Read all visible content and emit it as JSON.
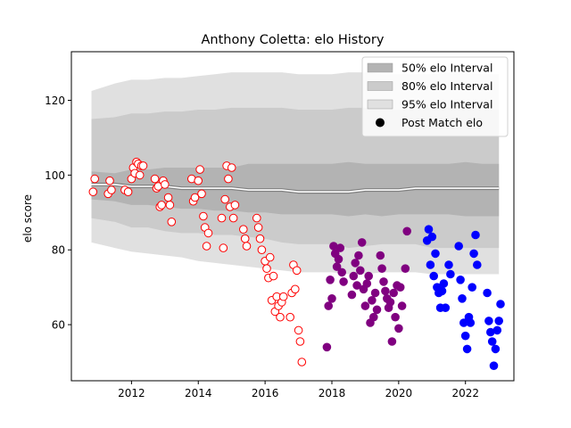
{
  "chart_data": {
    "type": "scatter",
    "title": "Anthony Coletta: elo History",
    "xlabel": "",
    "ylabel": "elo score",
    "xlim": [
      2010.2,
      2023.45
    ],
    "ylim": [
      45,
      133
    ],
    "xticks": [
      2012,
      2014,
      2016,
      2018,
      2020,
      2022
    ],
    "yticks": [
      60,
      80,
      100,
      120
    ],
    "grid": false,
    "legend": {
      "placement": "top-right",
      "entries": [
        {
          "label": "50% elo Interval",
          "swatch": "band",
          "color": "#b3b3b3"
        },
        {
          "label": "80% elo Interval",
          "swatch": "band",
          "color": "#cbcbcb"
        },
        {
          "label": "95% elo Interval",
          "swatch": "band",
          "color": "#e0e0e0"
        },
        {
          "label": "Post Match elo",
          "swatch": "dot",
          "color": "#000000"
        }
      ]
    },
    "bands": {
      "x": [
        2010.8,
        2011.5,
        2012.0,
        2012.5,
        2013.0,
        2013.5,
        2014.0,
        2014.5,
        2015.0,
        2015.5,
        2016.0,
        2016.5,
        2017.0,
        2017.5,
        2018.0,
        2018.5,
        2019.0,
        2019.5,
        2020.0,
        2020.5,
        2021.0,
        2021.5,
        2022.0,
        2022.5,
        2023.0
      ],
      "mean": [
        97.5,
        97.5,
        97.0,
        97.0,
        97.0,
        96.5,
        96.5,
        96.5,
        96.5,
        96.0,
        96.0,
        96.0,
        95.5,
        95.5,
        95.5,
        95.5,
        96.0,
        96.0,
        96.0,
        96.5,
        96.5,
        96.5,
        96.5,
        96.5,
        96.5
      ],
      "p50": [
        [
          93.5,
          101.0
        ],
        [
          93.0,
          100.5
        ],
        [
          92.0,
          101.5
        ],
        [
          92.0,
          101.5
        ],
        [
          91.5,
          102.0
        ],
        [
          91.0,
          102.0
        ],
        [
          91.0,
          102.0
        ],
        [
          90.5,
          102.0
        ],
        [
          90.5,
          102.0
        ],
        [
          90.0,
          103.0
        ],
        [
          90.0,
          103.0
        ],
        [
          89.5,
          103.0
        ],
        [
          89.5,
          103.0
        ],
        [
          89.5,
          103.0
        ],
        [
          89.5,
          103.0
        ],
        [
          89.0,
          103.5
        ],
        [
          89.5,
          103.0
        ],
        [
          89.0,
          103.0
        ],
        [
          89.5,
          103.0
        ],
        [
          89.5,
          103.0
        ],
        [
          89.5,
          103.0
        ],
        [
          89.5,
          103.0
        ],
        [
          89.0,
          103.5
        ],
        [
          89.0,
          103.0
        ],
        [
          89.0,
          103.0
        ]
      ],
      "p80": [
        [
          88.5,
          115.0
        ],
        [
          87.5,
          115.5
        ],
        [
          86.0,
          116.5
        ],
        [
          86.0,
          116.5
        ],
        [
          85.0,
          117.0
        ],
        [
          84.5,
          117.0
        ],
        [
          84.5,
          117.5
        ],
        [
          84.0,
          117.5
        ],
        [
          84.0,
          118.0
        ],
        [
          83.5,
          118.0
        ],
        [
          83.0,
          118.0
        ],
        [
          82.0,
          118.0
        ],
        [
          81.5,
          117.5
        ],
        [
          81.5,
          117.5
        ],
        [
          81.5,
          117.5
        ],
        [
          80.5,
          118.0
        ],
        [
          81.0,
          118.0
        ],
        [
          81.5,
          117.5
        ],
        [
          81.5,
          117.5
        ],
        [
          81.5,
          117.5
        ],
        [
          80.5,
          118.0
        ],
        [
          80.5,
          118.0
        ],
        [
          80.5,
          118.0
        ],
        [
          80.5,
          117.5
        ],
        [
          80.5,
          117.5
        ]
      ],
      "p95": [
        [
          82.0,
          122.5
        ],
        [
          80.5,
          124.5
        ],
        [
          79.5,
          125.5
        ],
        [
          79.0,
          125.5
        ],
        [
          78.5,
          126.0
        ],
        [
          78.0,
          126.0
        ],
        [
          77.0,
          126.5
        ],
        [
          76.5,
          127.0
        ],
        [
          76.0,
          127.5
        ],
        [
          75.5,
          127.5
        ],
        [
          75.0,
          127.5
        ],
        [
          74.5,
          127.5
        ],
        [
          74.0,
          127.0
        ],
        [
          74.0,
          127.0
        ],
        [
          74.0,
          127.0
        ],
        [
          73.5,
          127.5
        ],
        [
          73.5,
          127.5
        ],
        [
          74.0,
          127.0
        ],
        [
          74.0,
          127.0
        ],
        [
          74.0,
          127.0
        ],
        [
          73.5,
          127.0
        ],
        [
          73.5,
          127.5
        ],
        [
          73.5,
          127.5
        ],
        [
          73.5,
          127.0
        ],
        [
          73.5,
          127.0
        ]
      ]
    },
    "series": [
      {
        "color": "#ff0000",
        "fill": "#ffffff",
        "x": [
          2010.85,
          2010.9,
          2011.3,
          2011.35,
          2011.4,
          2011.8,
          2011.9,
          2012.0,
          2012.05,
          2012.1,
          2012.15,
          2012.2,
          2012.25,
          2012.3,
          2012.35,
          2012.7,
          2012.75,
          2012.8,
          2012.85,
          2012.9,
          2012.95,
          2013.0,
          2013.1,
          2013.15,
          2013.2,
          2013.8,
          2013.85,
          2013.9,
          2014.0,
          2014.05,
          2014.1,
          2014.15,
          2014.2,
          2014.25,
          2014.3,
          2014.7,
          2014.75,
          2014.8,
          2014.85,
          2014.9,
          2014.95,
          2015.0,
          2015.05,
          2015.1,
          2015.35,
          2015.4,
          2015.45,
          2015.75,
          2015.8,
          2015.85,
          2015.9,
          2016.0,
          2016.05,
          2016.1,
          2016.15,
          2016.2,
          2016.25,
          2016.3,
          2016.35,
          2016.4,
          2016.45,
          2016.5,
          2016.55,
          2016.75,
          2016.8,
          2016.85,
          2016.9,
          2016.95,
          2017.0,
          2017.05,
          2017.1
        ],
        "y": [
          95.5,
          99.0,
          95.0,
          98.5,
          96.0,
          96.0,
          95.5,
          99.0,
          102.0,
          100.5,
          103.5,
          103.0,
          100.0,
          102.5,
          102.5,
          99.0,
          96.5,
          97.0,
          91.5,
          92.0,
          98.5,
          97.5,
          94.0,
          92.0,
          87.5,
          99.0,
          93.0,
          94.0,
          98.5,
          101.5,
          95.0,
          89.0,
          86.0,
          81.0,
          84.5,
          88.5,
          80.5,
          93.5,
          102.5,
          99.0,
          91.5,
          102.0,
          88.5,
          92.0,
          85.5,
          83.0,
          81.0,
          88.5,
          86.0,
          83.0,
          80.0,
          77.0,
          75.0,
          72.5,
          78.0,
          66.5,
          73.0,
          63.5,
          67.5,
          65.0,
          62.0,
          66.0,
          67.5,
          62.0,
          68.5,
          76.0,
          69.5,
          74.5,
          58.5,
          55.5,
          50.0
        ]
      },
      {
        "color": "#800080",
        "fill": "#800080",
        "x": [
          2017.85,
          2017.9,
          2017.95,
          2018.0,
          2018.05,
          2018.1,
          2018.15,
          2018.2,
          2018.25,
          2018.3,
          2018.35,
          2018.6,
          2018.65,
          2018.7,
          2018.75,
          2018.8,
          2018.85,
          2018.9,
          2018.95,
          2019.0,
          2019.05,
          2019.1,
          2019.15,
          2019.2,
          2019.25,
          2019.3,
          2019.35,
          2019.45,
          2019.5,
          2019.55,
          2019.6,
          2019.65,
          2019.7,
          2019.75,
          2019.8,
          2019.85,
          2019.9,
          2019.95,
          2020.0,
          2020.05,
          2020.1,
          2020.2,
          2020.25
        ],
        "y": [
          54.0,
          65.0,
          72.0,
          67.0,
          81.0,
          79.0,
          75.5,
          77.5,
          80.5,
          74.0,
          71.5,
          68.0,
          73.0,
          76.5,
          70.5,
          78.5,
          74.5,
          82.0,
          69.5,
          65.0,
          71.0,
          73.0,
          60.5,
          66.5,
          62.0,
          68.5,
          64.0,
          78.5,
          75.0,
          71.5,
          69.0,
          67.0,
          64.5,
          66.0,
          55.5,
          68.5,
          62.0,
          70.5,
          59.0,
          70.0,
          65.0,
          75.0,
          85.0
        ]
      },
      {
        "color": "#0000ff",
        "fill": "#0000ff",
        "x": [
          2020.85,
          2020.9,
          2020.95,
          2021.0,
          2021.05,
          2021.1,
          2021.15,
          2021.2,
          2021.25,
          2021.3,
          2021.35,
          2021.4,
          2021.5,
          2021.55,
          2021.8,
          2021.85,
          2021.9,
          2021.95,
          2022.0,
          2022.05,
          2022.1,
          2022.15,
          2022.2,
          2022.25,
          2022.3,
          2022.35,
          2022.65,
          2022.7,
          2022.75,
          2022.8,
          2022.85,
          2022.9,
          2022.95,
          2023.0,
          2023.05
        ],
        "y": [
          82.5,
          85.5,
          76.0,
          83.5,
          73.0,
          79.0,
          70.0,
          68.5,
          64.5,
          69.0,
          71.0,
          64.5,
          76.0,
          73.5,
          81.0,
          72.0,
          67.0,
          60.5,
          57.0,
          53.5,
          62.0,
          60.5,
          70.0,
          79.0,
          84.0,
          76.0,
          68.5,
          61.0,
          58.0,
          55.5,
          49.0,
          53.5,
          58.5,
          61.0,
          65.5
        ]
      }
    ]
  }
}
